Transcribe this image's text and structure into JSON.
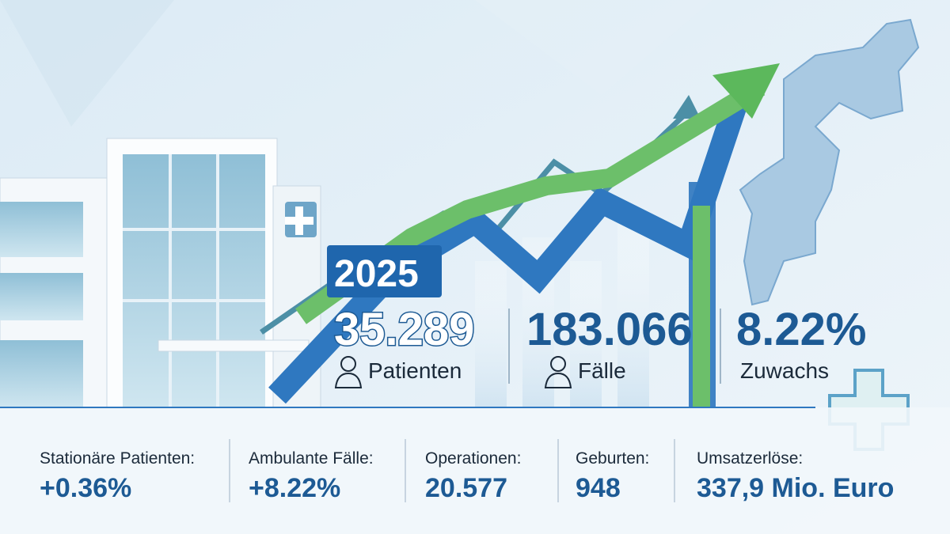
{
  "header": {
    "year": "2025"
  },
  "highlights": [
    {
      "value": "35.289",
      "label": "Patienten"
    },
    {
      "value": "183.066",
      "label": "Fälle"
    },
    {
      "value": "8.22%",
      "label": "Zuwachs"
    }
  ],
  "stats": [
    {
      "label": "Stationäre Patienten:",
      "value": "+0.36%"
    },
    {
      "label": "Ambulante Fälle:",
      "value": "+8.22%"
    },
    {
      "label": "Operationen:",
      "value": "20.577"
    },
    {
      "label": "Geburten:",
      "value": "948"
    },
    {
      "label": "Umsatzerlöse:",
      "value": "337,9 Mio. Euro"
    }
  ]
}
